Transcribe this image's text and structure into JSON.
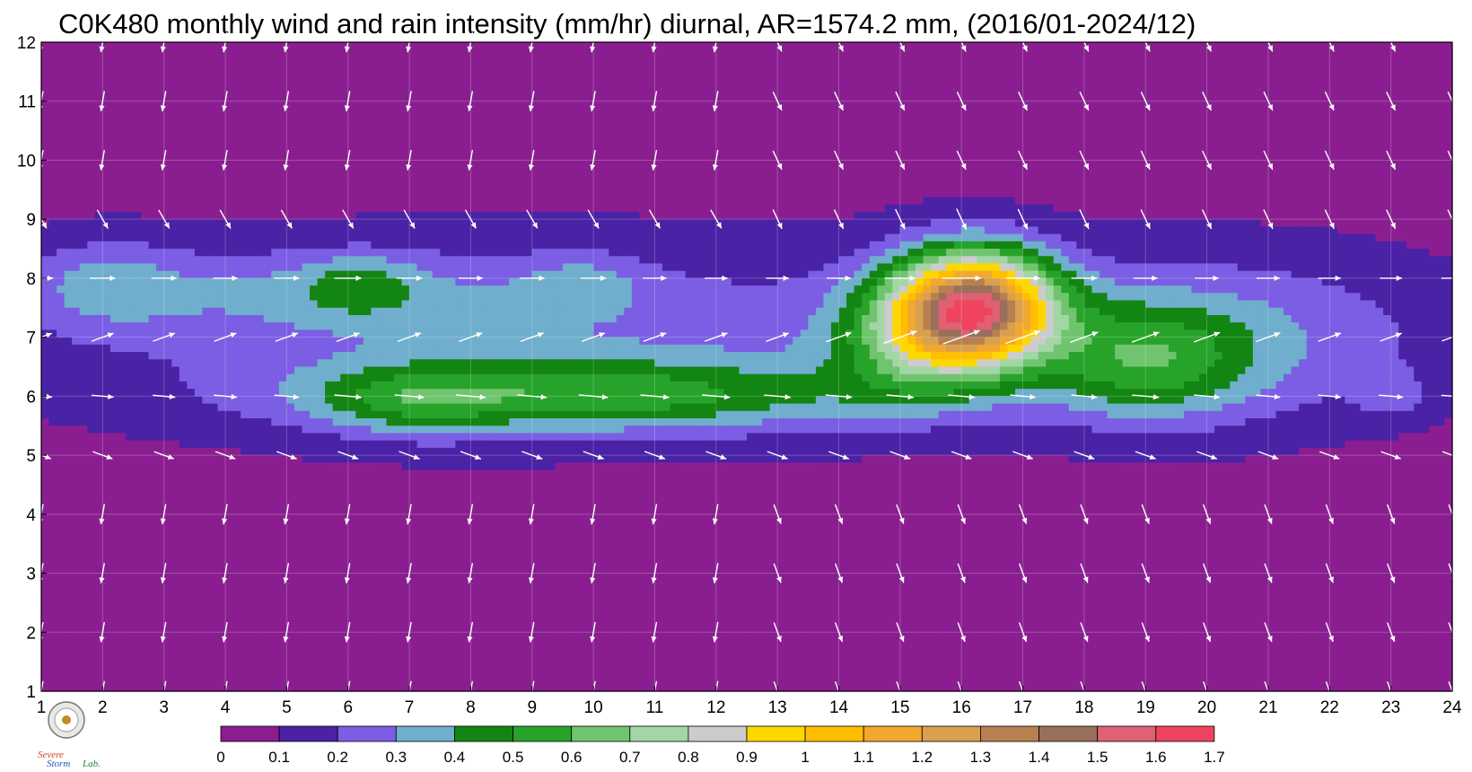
{
  "chart_data": {
    "type": "heatmap",
    "title": "C0K480 monthly wind and rain intensity (mm/hr) diurnal, AR=1574.2 mm, (2016/01-2024/12)",
    "xlabel": "",
    "ylabel": "",
    "x_ticks": [
      "1",
      "2",
      "3",
      "4",
      "5",
      "6",
      "7",
      "8",
      "9",
      "10",
      "11",
      "12",
      "13",
      "14",
      "15",
      "16",
      "17",
      "18",
      "19",
      "20",
      "21",
      "22",
      "23",
      "24"
    ],
    "y_ticks": [
      "1",
      "2",
      "3",
      "4",
      "5",
      "6",
      "7",
      "8",
      "9",
      "10",
      "11",
      "12"
    ],
    "xlim": [
      1,
      24
    ],
    "ylim": [
      1,
      12
    ],
    "grid": true,
    "colorbar": {
      "levels": [
        "0",
        "0.1",
        "0.2",
        "0.3",
        "0.4",
        "0.5",
        "0.6",
        "0.7",
        "0.8",
        "0.9",
        "1",
        "1.1",
        "1.2",
        "1.3",
        "1.4",
        "1.5",
        "1.6",
        "1.7"
      ],
      "colors": [
        "#8a1e90",
        "#4a22a6",
        "#7b5ee3",
        "#70aecd",
        "#138512",
        "#27a32a",
        "#71c46f",
        "#a3d6a5",
        "#cccccc",
        "#ffd700",
        "#ffbe00",
        "#f0a830",
        "#d9a050",
        "#b88050",
        "#9a6f5c",
        "#e06074",
        "#ee4460",
        "#d42738"
      ]
    },
    "background_value": 0.05,
    "hotspots": [
      {
        "x": 16.2,
        "y": 7.5,
        "sx": 1.3,
        "sy": 0.95,
        "a": 1.34
      },
      {
        "x": 15.2,
        "y": 6.9,
        "sx": 1.3,
        "sy": 1.0,
        "a": 0.33
      },
      {
        "x": 19.0,
        "y": 6.6,
        "sx": 1.7,
        "sy": 1.0,
        "a": 0.35
      },
      {
        "x": 10.0,
        "y": 6.0,
        "sx": 4.5,
        "sy": 0.6,
        "a": 0.38
      },
      {
        "x": 7.0,
        "y": 5.9,
        "sx": 1.5,
        "sy": 0.6,
        "a": 0.18
      },
      {
        "x": 9.5,
        "y": 7.0,
        "sx": 9.0,
        "sy": 1.7,
        "a": 0.22
      },
      {
        "x": 5.5,
        "y": 7.8,
        "sx": 3.0,
        "sy": 0.7,
        "a": 0.15
      },
      {
        "x": 2.0,
        "y": 7.9,
        "sx": 1.4,
        "sy": 0.8,
        "a": 0.2
      },
      {
        "x": 6.2,
        "y": 7.9,
        "sx": 0.9,
        "sy": 0.5,
        "a": 0.15
      },
      {
        "x": 9.8,
        "y": 7.9,
        "sx": 1.0,
        "sy": 0.5,
        "a": 0.15
      },
      {
        "x": 20.8,
        "y": 7.0,
        "sx": 3.5,
        "sy": 1.5,
        "a": 0.2
      },
      {
        "x": 23.0,
        "y": 6.0,
        "sx": 0.6,
        "sy": 0.4,
        "a": 0.12
      }
    ],
    "wind": {
      "hours": [
        1,
        2,
        3,
        4,
        5,
        6,
        7,
        8,
        9,
        10,
        11,
        12,
        13,
        14,
        15,
        16,
        17,
        18,
        19,
        20,
        21,
        22,
        23,
        24
      ],
      "months": [
        1,
        2,
        3,
        4,
        5,
        6,
        7,
        8,
        9,
        10,
        11,
        12
      ],
      "note": "arrow direction per month row; speed scales with rain intensity"
    }
  },
  "logo": {
    "line1": "Severe",
    "line2": "Storm",
    "line3": "Lab."
  }
}
